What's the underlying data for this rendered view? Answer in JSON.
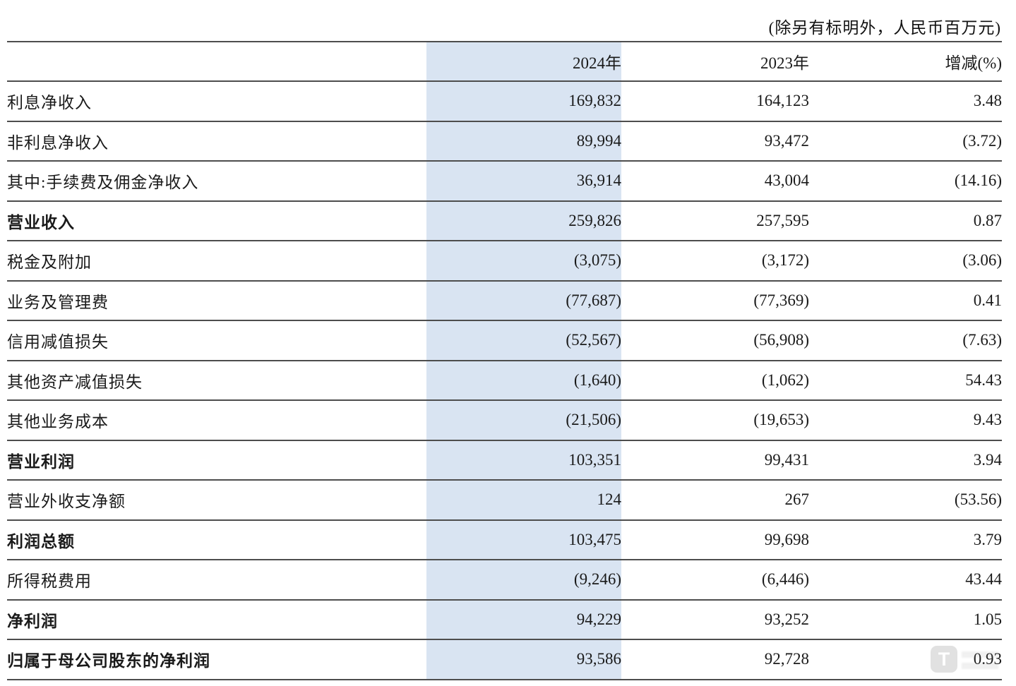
{
  "note": "(除另有标明外，人民币百万元)",
  "table": {
    "columns": {
      "label": "",
      "y2024": "2024年",
      "y2023": "2023年",
      "change": "增减(%)"
    },
    "rows": [
      {
        "label": "利息净收入",
        "y2024": "169,832",
        "y2023": "164,123",
        "change": "3.48",
        "bold": false
      },
      {
        "label": "非利息净收入",
        "y2024": "89,994",
        "y2023": "93,472",
        "change": "(3.72)",
        "bold": false
      },
      {
        "label": "其中:手续费及佣金净收入",
        "y2024": "36,914",
        "y2023": "43,004",
        "change": "(14.16)",
        "bold": false
      },
      {
        "label": "营业收入",
        "y2024": "259,826",
        "y2023": "257,595",
        "change": "0.87",
        "bold": true
      },
      {
        "label": "税金及附加",
        "y2024": "(3,075)",
        "y2023": "(3,172)",
        "change": "(3.06)",
        "bold": false
      },
      {
        "label": "业务及管理费",
        "y2024": "(77,687)",
        "y2023": "(77,369)",
        "change": "0.41",
        "bold": false
      },
      {
        "label": "信用减值损失",
        "y2024": "(52,567)",
        "y2023": "(56,908)",
        "change": "(7.63)",
        "bold": false
      },
      {
        "label": "其他资产减值损失",
        "y2024": "(1,640)",
        "y2023": "(1,062)",
        "change": "54.43",
        "bold": false
      },
      {
        "label": "其他业务成本",
        "y2024": "(21,506)",
        "y2023": "(19,653)",
        "change": "9.43",
        "bold": false
      },
      {
        "label": "营业利润",
        "y2024": "103,351",
        "y2023": "99,431",
        "change": "3.94",
        "bold": true
      },
      {
        "label": "营业外收支净额",
        "y2024": "124",
        "y2023": "267",
        "change": "(53.56)",
        "bold": false
      },
      {
        "label": "利润总额",
        "y2024": "103,475",
        "y2023": "99,698",
        "change": "3.79",
        "bold": true
      },
      {
        "label": "所得税费用",
        "y2024": "(9,246)",
        "y2023": "(6,446)",
        "change": "43.44",
        "bold": false
      },
      {
        "label": "净利润",
        "y2024": "94,229",
        "y2023": "93,252",
        "change": "1.05",
        "bold": true
      },
      {
        "label": "归属于母公司股东的净利润",
        "y2024": "93,586",
        "y2023": "92,728",
        "change": "0.93",
        "bold": true
      }
    ]
  },
  "watermark": {
    "letter": "T"
  },
  "colors": {
    "highlight_column": "#d9e4f2",
    "rule": "#4d4d4d",
    "text": "#1a1a1a",
    "watermark": "#c9c9c9"
  }
}
